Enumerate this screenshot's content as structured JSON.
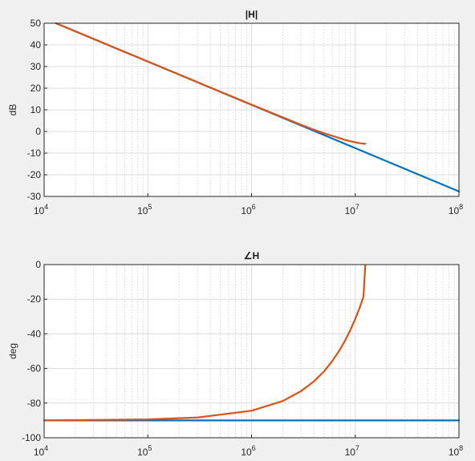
{
  "chart_data": [
    {
      "type": "line",
      "title": "|H|",
      "xlabel": "",
      "ylabel": "dB",
      "xscale": "log",
      "xlim": [
        10000,
        100000000
      ],
      "ylim": [
        -30,
        50
      ],
      "yticks": [
        -30,
        -20,
        -10,
        0,
        10,
        20,
        30,
        40,
        50
      ],
      "xticks": [
        {
          "base": "10",
          "exp": "4"
        },
        {
          "base": "10",
          "exp": "5"
        },
        {
          "base": "10",
          "exp": "6"
        },
        {
          "base": "10",
          "exp": "7"
        },
        {
          "base": "10",
          "exp": "8"
        }
      ],
      "grid": true,
      "series": [
        {
          "color": "#0072BD",
          "x": [
            13000,
            100000,
            1000000,
            3000000,
            10000000,
            100000000
          ],
          "y": [
            50.0,
            32.3,
            12.3,
            2.8,
            -7.7,
            -27.7
          ]
        },
        {
          "color": "#D95319",
          "x": [
            13000,
            100000,
            1000000,
            2000000,
            3000000,
            4000000,
            5000000,
            6000000,
            7000000,
            8000000,
            9000000,
            10000000,
            11000000,
            12000000,
            12500000
          ],
          "y": [
            50.0,
            32.3,
            12.4,
            6.5,
            3.1,
            0.8,
            -0.8,
            -2.0,
            -3.0,
            -3.9,
            -4.5,
            -5.0,
            -5.4,
            -5.6,
            -5.7
          ]
        }
      ]
    },
    {
      "type": "line",
      "title": "∠H",
      "xlabel": "",
      "ylabel": "deg",
      "xscale": "log",
      "xlim": [
        10000,
        100000000
      ],
      "ylim": [
        -100,
        0
      ],
      "yticks": [
        -100,
        -80,
        -60,
        -40,
        -20,
        0
      ],
      "xticks": [
        {
          "base": "10",
          "exp": "4"
        },
        {
          "base": "10",
          "exp": "5"
        },
        {
          "base": "10",
          "exp": "6"
        },
        {
          "base": "10",
          "exp": "7"
        },
        {
          "base": "10",
          "exp": "8"
        }
      ],
      "grid": true,
      "series": [
        {
          "color": "#0072BD",
          "x": [
            10000,
            100000000
          ],
          "y": [
            -90,
            -90
          ]
        },
        {
          "color": "#D95319",
          "x": [
            10000,
            100000,
            300000,
            1000000,
            2000000,
            3000000,
            4000000,
            5000000,
            6000000,
            7000000,
            8000000,
            9000000,
            10000000,
            11000000,
            12000000,
            12500000
          ],
          "y": [
            -90.0,
            -89.4,
            -88.3,
            -84.4,
            -78.8,
            -73.1,
            -67.4,
            -61.7,
            -55.7,
            -49.8,
            -43.8,
            -37.6,
            -31.4,
            -25.1,
            -18.6,
            -0.5
          ]
        }
      ]
    }
  ]
}
